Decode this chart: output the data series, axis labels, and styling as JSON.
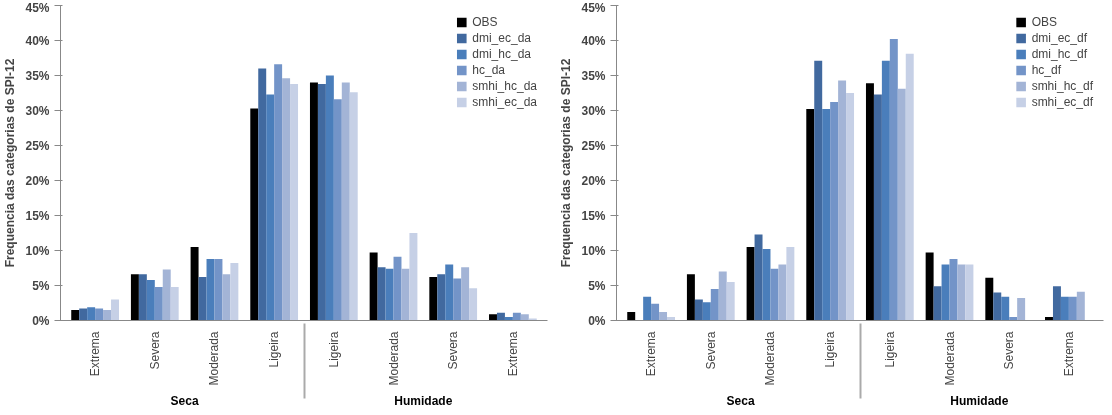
{
  "chart_data": [
    {
      "type": "bar",
      "ylabel": "Frequencia das categorias de SPI-12",
      "annotations": [
        "Seca",
        "Humidade"
      ],
      "categories": [
        "Extrema",
        "Severa",
        "Moderada",
        "Ligeira",
        "Ligeira",
        "Moderada",
        "Severa",
        "Extrema"
      ],
      "ylim": [
        0,
        45
      ],
      "yticks": [
        {
          "value": 0,
          "label": "0%"
        },
        {
          "value": 5,
          "label": "5%"
        },
        {
          "value": 10,
          "label": "10%"
        },
        {
          "value": 15,
          "label": "15%"
        },
        {
          "value": 20,
          "label": "20%"
        },
        {
          "value": 25,
          "label": "25%"
        },
        {
          "value": 30,
          "label": "30%"
        },
        {
          "value": 35,
          "label": "35%"
        },
        {
          "value": 40,
          "label": "40%"
        },
        {
          "value": 45,
          "label": "45%"
        }
      ],
      "grid": false,
      "legend": "top right",
      "series": [
        {
          "name": "OBS",
          "color": "#000000",
          "values": [
            1.5,
            6.6,
            10.5,
            30.3,
            34.0,
            9.7,
            6.2,
            0.9
          ]
        },
        {
          "name": "dmi_ec_da",
          "color": "#41699f",
          "values": [
            1.7,
            6.6,
            6.2,
            36.0,
            33.8,
            7.6,
            6.6,
            1.1
          ]
        },
        {
          "name": "dmi_hc_da",
          "color": "#4a7ebb",
          "values": [
            1.9,
            5.8,
            8.8,
            32.3,
            35.0,
            7.4,
            8.0,
            0.5
          ]
        },
        {
          "name": "hc_da",
          "color": "#7394c8",
          "values": [
            1.7,
            4.8,
            8.8,
            36.6,
            31.6,
            9.1,
            6.0,
            1.1
          ]
        },
        {
          "name": "smhi_hc_da",
          "color": "#a3b4d6",
          "values": [
            1.5,
            7.3,
            6.6,
            34.6,
            34.0,
            7.4,
            7.6,
            0.9
          ]
        },
        {
          "name": "smhi_ec_da",
          "color": "#c6d0e6",
          "values": [
            3.0,
            4.8,
            8.2,
            33.8,
            32.6,
            12.5,
            4.6,
            0.3
          ]
        }
      ]
    },
    {
      "type": "bar",
      "ylabel": "Frequencia das categorias de SPI-12",
      "annotations": [
        "Seca",
        "Humidade"
      ],
      "categories": [
        "Extrema",
        "Severa",
        "Moderada",
        "Ligeira",
        "Ligeira",
        "Moderada",
        "Severa",
        "Extrema"
      ],
      "ylim": [
        0,
        45
      ],
      "yticks": [
        {
          "value": 0,
          "label": "0%"
        },
        {
          "value": 5,
          "label": "5%"
        },
        {
          "value": 10,
          "label": "10%"
        },
        {
          "value": 15,
          "label": "15%"
        },
        {
          "value": 20,
          "label": "20%"
        },
        {
          "value": 25,
          "label": "25%"
        },
        {
          "value": 30,
          "label": "30%"
        },
        {
          "value": 35,
          "label": "35%"
        },
        {
          "value": 40,
          "label": "40%"
        },
        {
          "value": 45,
          "label": "45%"
        }
      ],
      "grid": false,
      "legend": "top right",
      "series": [
        {
          "name": "OBS",
          "color": "#000000",
          "values": [
            1.2,
            6.6,
            10.5,
            30.2,
            33.9,
            9.7,
            6.1,
            0.5
          ]
        },
        {
          "name": "dmi_ec_df",
          "color": "#41699f",
          "values": [
            0,
            3.0,
            12.3,
            37.1,
            32.3,
            4.9,
            4.0,
            4.9
          ]
        },
        {
          "name": "dmi_hc_df",
          "color": "#4a7ebb",
          "values": [
            3.4,
            2.6,
            10.2,
            30.2,
            37.1,
            8.0,
            3.4,
            3.4
          ]
        },
        {
          "name": "hc_df",
          "color": "#7394c8",
          "values": [
            2.4,
            4.5,
            7.4,
            31.2,
            40.2,
            8.8,
            0.5,
            3.4
          ]
        },
        {
          "name": "smhi_hc_df",
          "color": "#a3b4d6",
          "values": [
            1.2,
            7.0,
            8.0,
            34.3,
            33.1,
            8.0,
            3.2,
            4.1
          ]
        },
        {
          "name": "smhi_ec_df",
          "color": "#c6d0e6",
          "values": [
            0.5,
            5.5,
            10.5,
            32.5,
            38.1,
            8.0,
            0,
            null
          ]
        }
      ]
    }
  ]
}
